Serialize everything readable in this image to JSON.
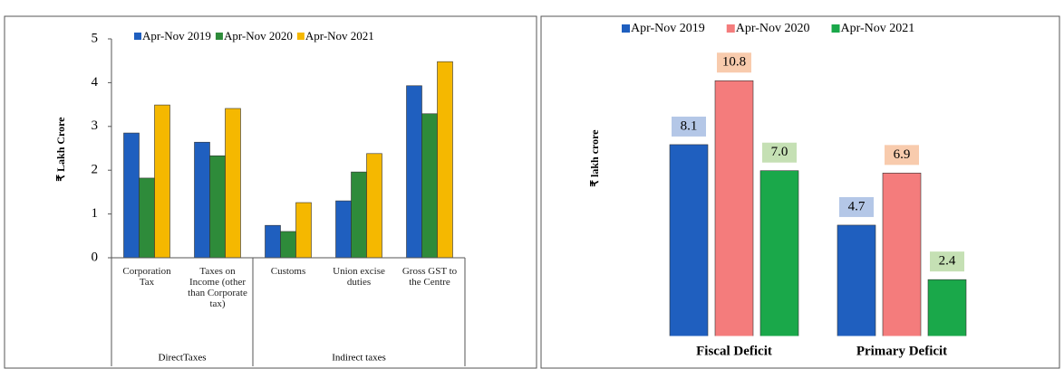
{
  "chart_data": [
    {
      "type": "bar",
      "y_label": "₹ Lakh Crore",
      "groups": [
        {
          "name": "DirectTaxes",
          "categories": [
            "Corporation Tax",
            "Taxes on Income (other than Corporate tax)"
          ]
        },
        {
          "name": "Indirect taxes",
          "categories": [
            "Customs",
            "Union excise duties",
            "Gross GST to the Centre"
          ]
        }
      ],
      "series": [
        {
          "name": "Apr-Nov 2019",
          "color": "#1f5fbf",
          "values": [
            2.85,
            2.64,
            0.74,
            1.3,
            3.93
          ]
        },
        {
          "name": "Apr-Nov 2020",
          "color": "#2e8b3a",
          "values": [
            1.82,
            2.33,
            0.6,
            1.96,
            3.29
          ]
        },
        {
          "name": "Apr-Nov 2021",
          "color": "#f5b800",
          "values": [
            3.49,
            3.41,
            1.26,
            2.38,
            4.48
          ]
        }
      ],
      "ylim": [
        0,
        5
      ],
      "yticks": [
        0,
        1,
        2,
        3,
        4,
        5
      ]
    },
    {
      "type": "bar",
      "y_label": "₹ lakh crore",
      "categories": [
        "Fiscal Deficit",
        "Primary Deficit"
      ],
      "series": [
        {
          "name": "Apr-Nov 2019",
          "color": "#1f5fbf",
          "label_color": "#b4c7e7",
          "values": [
            8.1,
            4.7
          ],
          "value_labels": [
            "8.1",
            "4.7"
          ]
        },
        {
          "name": "Apr-Nov 2020",
          "color": "#f47c7c",
          "label_color": "#f8cbad",
          "values": [
            10.8,
            6.9
          ],
          "value_labels": [
            "10.8",
            "6.9"
          ]
        },
        {
          "name": "Apr-Nov 2021",
          "color": "#1aa84a",
          "label_color": "#c5e0b4",
          "values": [
            7,
            2.4
          ],
          "value_labels": [
            "7.0",
            "2.4"
          ]
        }
      ],
      "ylim": [
        0,
        11
      ]
    }
  ]
}
